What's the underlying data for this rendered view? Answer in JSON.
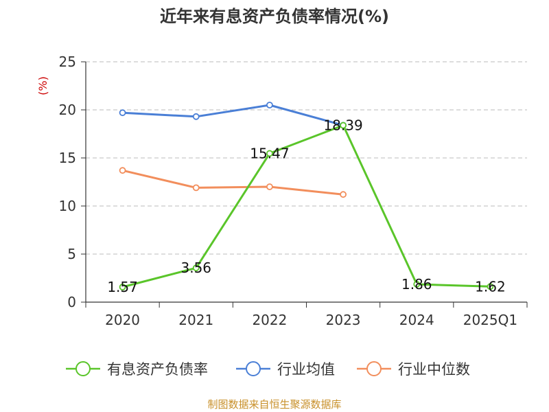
{
  "chart_data": {
    "type": "line",
    "title": "近年来有息资产负债率情况(%)",
    "ylabel": "(%)",
    "categories": [
      "2020",
      "2021",
      "2022",
      "2023",
      "2024",
      "2025Q1"
    ],
    "ylim": [
      0,
      25
    ],
    "yticks": [
      0,
      5,
      10,
      15,
      20,
      25
    ],
    "grid": true,
    "legend_position": "bottom",
    "series": [
      {
        "name": "有息资产负债率",
        "color": "#5ac52a",
        "values": [
          1.57,
          3.56,
          15.47,
          18.39,
          1.86,
          1.62
        ],
        "labels": [
          "1.57",
          "3.56",
          "15.47",
          "18.39",
          "1.86",
          "1.62"
        ]
      },
      {
        "name": "行业均值",
        "color": "#4a7fd6",
        "values": [
          19.7,
          19.3,
          20.5,
          18.4,
          null,
          null
        ]
      },
      {
        "name": "行业中位数",
        "color": "#f28e5c",
        "values": [
          13.7,
          11.9,
          12.0,
          11.2,
          null,
          null
        ]
      }
    ]
  },
  "source": "制图数据来自恒生聚源数据库"
}
